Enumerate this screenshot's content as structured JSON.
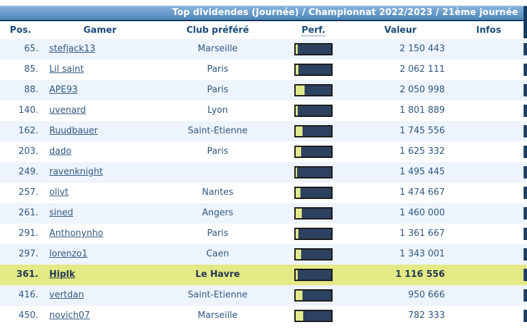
{
  "header": {
    "title": "Top dividendes (Journée) / Championnat 2022/2023 / 21ème journée"
  },
  "columns": {
    "pos": "Pos.",
    "gamer": "Gamer",
    "club": "Club préféré",
    "perf": "Perf.",
    "valeur": "Valeur",
    "infos": "Infos"
  },
  "rows": [
    {
      "pos": "65.",
      "gamer": "stefjack13",
      "club": "Marseille",
      "perf_pct": 5,
      "valeur": "2 150 443",
      "highlight": false
    },
    {
      "pos": "85.",
      "gamer": "Lil saint",
      "club": "Paris",
      "perf_pct": 7,
      "valeur": "2 062 111",
      "highlight": false
    },
    {
      "pos": "88.",
      "gamer": "APE93",
      "club": "Paris",
      "perf_pct": 25,
      "valeur": "2 050 998",
      "highlight": false
    },
    {
      "pos": "140.",
      "gamer": "uvenard",
      "club": "Lyon",
      "perf_pct": 5,
      "valeur": "1 801 889",
      "highlight": false
    },
    {
      "pos": "162.",
      "gamer": "Ruudbauer",
      "club": "Saint-Etienne",
      "perf_pct": 20,
      "valeur": "1 745 556",
      "highlight": false
    },
    {
      "pos": "203.",
      "gamer": "dado",
      "club": "Paris",
      "perf_pct": 16,
      "valeur": "1 625 332",
      "highlight": false
    },
    {
      "pos": "249.",
      "gamer": "ravenknight",
      "club": "",
      "perf_pct": 4,
      "valeur": "1 495 445",
      "highlight": false
    },
    {
      "pos": "257.",
      "gamer": "olivt",
      "club": "Nantes",
      "perf_pct": 13,
      "valeur": "1 474 667",
      "highlight": false
    },
    {
      "pos": "261.",
      "gamer": "sined",
      "club": "Angers",
      "perf_pct": 18,
      "valeur": "1 460 000",
      "highlight": false
    },
    {
      "pos": "291.",
      "gamer": "Anthonynho",
      "club": "Paris",
      "perf_pct": 8,
      "valeur": "1 361 667",
      "highlight": false
    },
    {
      "pos": "297.",
      "gamer": "lorenzo1",
      "club": "Caen",
      "perf_pct": 16,
      "valeur": "1 343 001",
      "highlight": false
    },
    {
      "pos": "361.",
      "gamer": "Hiplk",
      "club": "Le Havre",
      "perf_pct": 5,
      "valeur": "1 116 556",
      "highlight": true
    },
    {
      "pos": "416.",
      "gamer": "vertdan",
      "club": "Saint-Etienne",
      "perf_pct": 20,
      "valeur": "950 666",
      "highlight": false
    },
    {
      "pos": "450.",
      "gamer": "novich07",
      "club": "Marseille",
      "perf_pct": 22,
      "valeur": "782 333",
      "highlight": false
    }
  ],
  "colors": {
    "header_gradient_top": "#8cb7dd",
    "header_gradient_bottom": "#4d87bb",
    "header_border": "#16395f",
    "header_text": "#ffffff",
    "column_header_text": "#1b4a7a",
    "row_alt_bg": "#eef4fd",
    "row_bg": "#ffffff",
    "row_text": "#2f5780",
    "highlight_bg": "#e3e985",
    "highlight_text": "#23384f",
    "perf_bar_border": "#1b1b1b",
    "perf_bar_bg": "#2d4161",
    "perf_bar_fill": "#e2e88c"
  }
}
